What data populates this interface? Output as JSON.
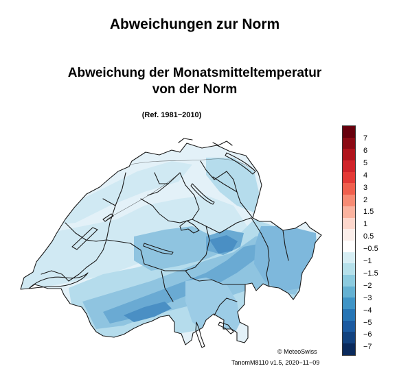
{
  "page": {
    "title": "Abweichungen zur Norm"
  },
  "map": {
    "title_line1": "Abweichung der Monatsmitteltemperatur",
    "title_line2": "von der Norm",
    "reference": "(Ref. 1981−2010)",
    "copyright": "© MeteoSwiss",
    "version": "TanomM8110 v1.5, 2020−11−09",
    "region_colors": {
      "plateau": "#e3f1f8",
      "lowland": "#d0e9f3",
      "prealps": "#b5dcec",
      "alps": "#8fc4e0",
      "high_alps": "#6aaad3",
      "peaks": "#4a8fc4",
      "ticino": "#9ccce6",
      "graubunden": "#7eb8dc"
    }
  },
  "legend": {
    "labels": [
      "7",
      "6",
      "5",
      "4",
      "3",
      "2",
      "1.5",
      "1",
      "0.5",
      "−0.5",
      "−1",
      "−1.5",
      "−2",
      "−3",
      "−4",
      "−5",
      "−6",
      "−7"
    ],
    "colors": [
      "#67000d",
      "#8b0a14",
      "#b0141c",
      "#d0242a",
      "#e43a36",
      "#f0604e",
      "#f78b74",
      "#fbb39f",
      "#fdd7cc",
      "#fbeeea",
      "#ffffff",
      "#d6eef4",
      "#b5e0ea",
      "#8ccbdf",
      "#64b1d2",
      "#3f94c6",
      "#2675b5",
      "#1b5aa0",
      "#12427f",
      "#0a2a5c"
    ]
  }
}
